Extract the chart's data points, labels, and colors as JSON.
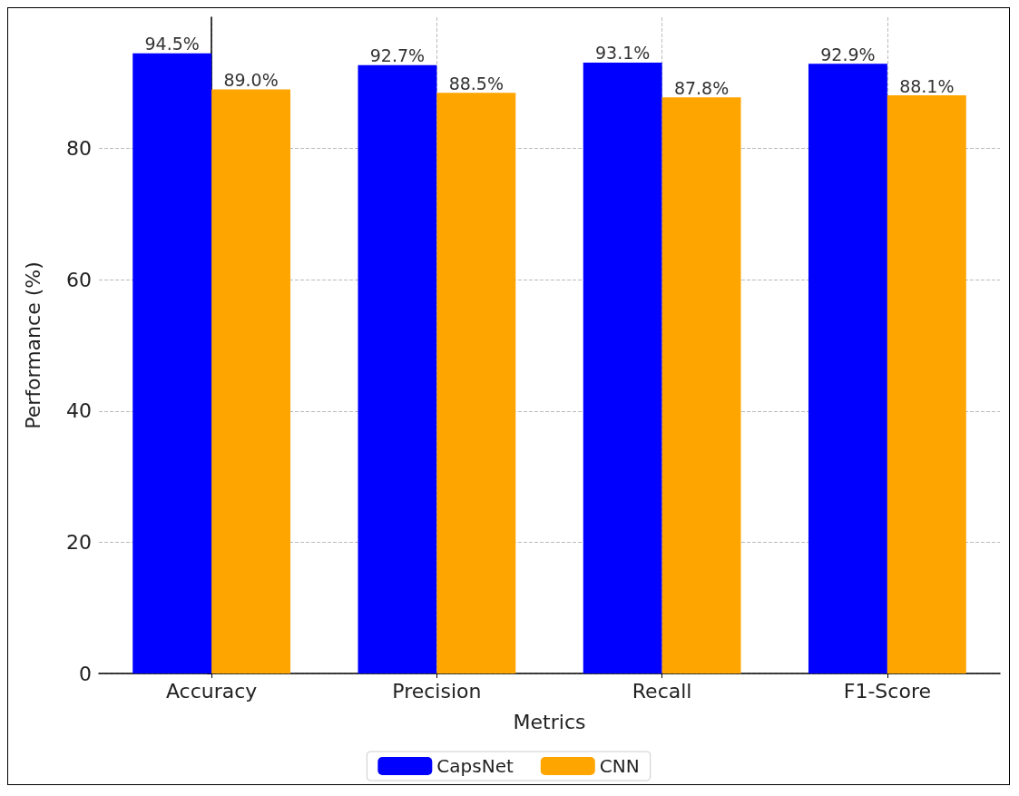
{
  "chart_data": {
    "type": "bar",
    "xlabel": "Metrics",
    "ylabel": "Performance (%)",
    "categories": [
      "Accuracy",
      "Precision",
      "Recall",
      "F1-Score"
    ],
    "series": [
      {
        "name": "CapsNet",
        "color": "#0000ff",
        "values": [
          94.5,
          92.7,
          93.1,
          92.9
        ],
        "value_labels": [
          "94.5%",
          "92.7%",
          "93.1%",
          "92.9%"
        ]
      },
      {
        "name": "CNN",
        "color": "#ffa500",
        "values": [
          89.0,
          88.5,
          87.8,
          88.1
        ],
        "value_labels": [
          "89.0%",
          "88.5%",
          "87.8%",
          "88.1%"
        ]
      }
    ],
    "ylim": [
      0,
      100
    ],
    "yticks": [
      0,
      20,
      40,
      60,
      80
    ],
    "grid": true,
    "legend": "bottom"
  }
}
